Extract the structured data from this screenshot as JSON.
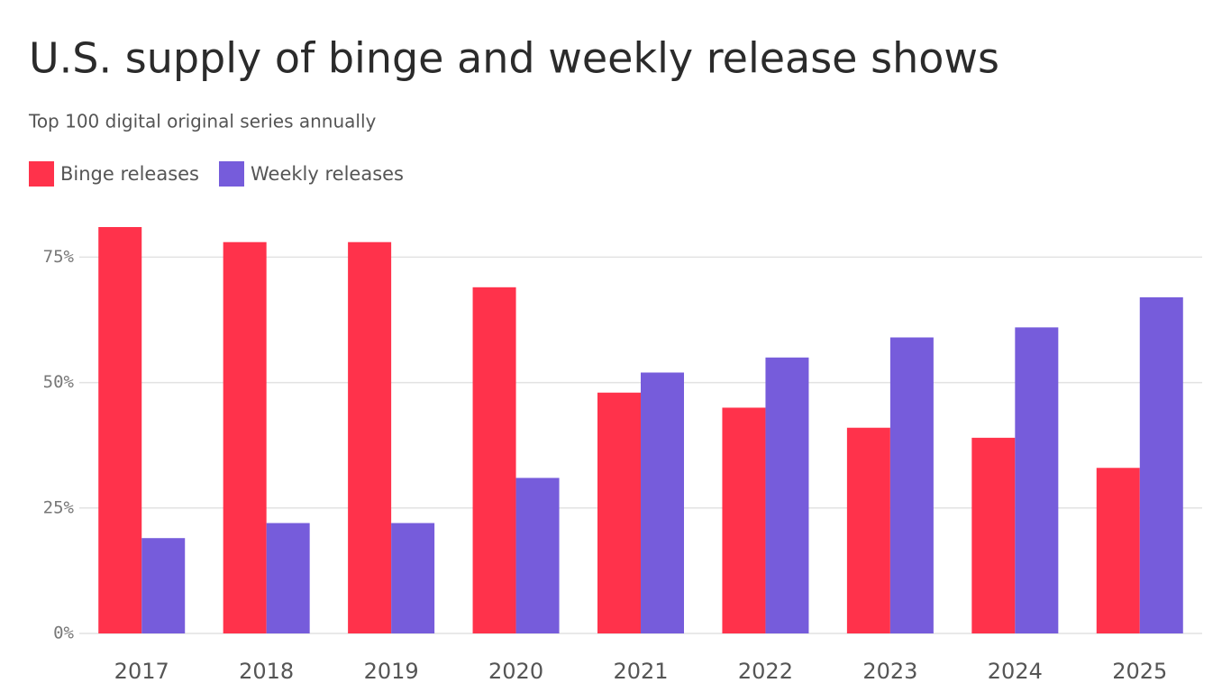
{
  "chart_data": {
    "type": "bar",
    "title": "U.S. supply of binge and weekly release shows",
    "subtitle": "Top 100 digital original series annually",
    "categories": [
      "2017",
      "2018",
      "2019",
      "2020",
      "2021",
      "2022",
      "2023",
      "2024",
      "2025"
    ],
    "series": [
      {
        "name": "Binge releases",
        "color": "#ff324b",
        "values": [
          81,
          78,
          78,
          69,
          48,
          45,
          41,
          39,
          33
        ]
      },
      {
        "name": "Weekly releases",
        "color": "#765cdb",
        "values": [
          19,
          22,
          22,
          31,
          52,
          55,
          59,
          61,
          67
        ]
      }
    ],
    "ylim": [
      0,
      81
    ],
    "yticks": [
      {
        "value": 0,
        "label": "0%"
      },
      {
        "value": 25,
        "label": "25%"
      },
      {
        "value": 50,
        "label": "50%"
      },
      {
        "value": 75,
        "label": "75%"
      }
    ],
    "grid": true
  }
}
